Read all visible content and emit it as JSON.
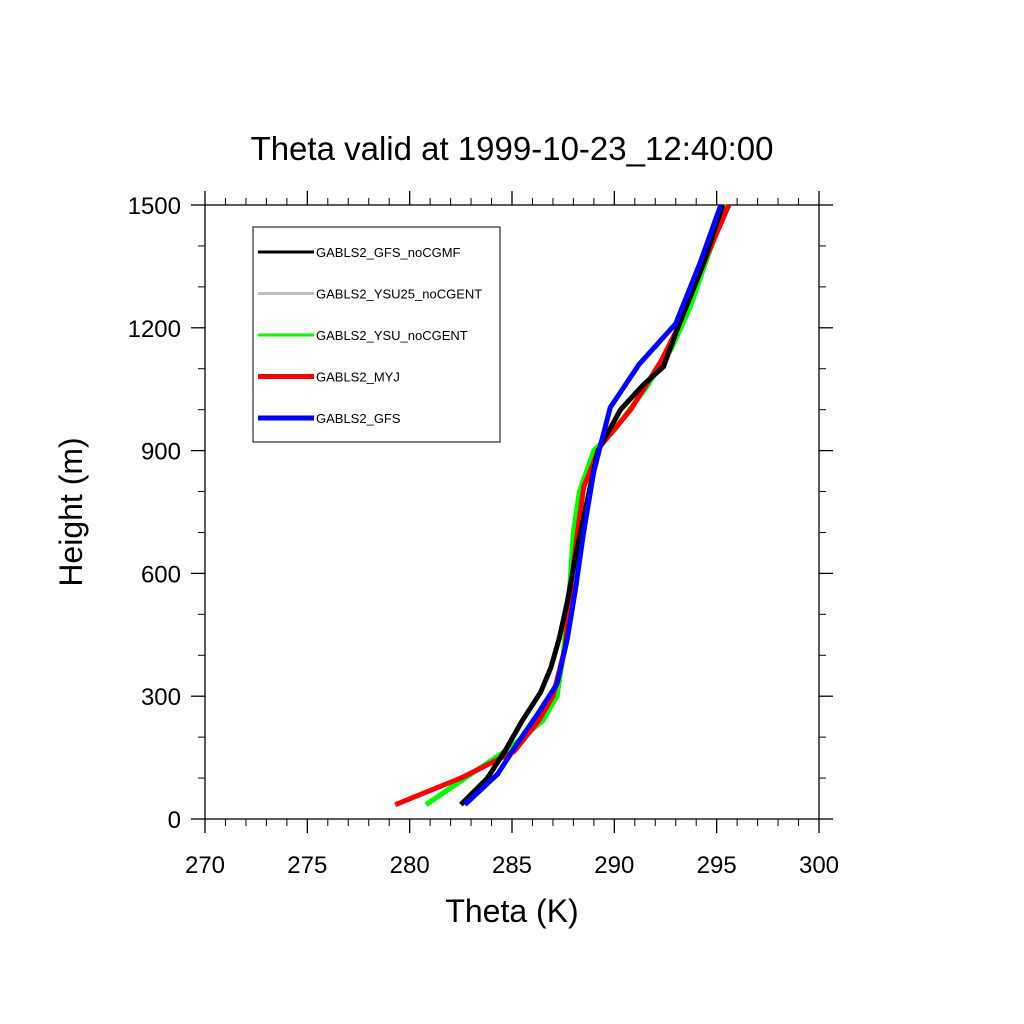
{
  "chart_data": {
    "type": "line",
    "title": "Theta valid at 1999-10-23_12:40:00",
    "xlabel": "Theta (K)",
    "ylabel": "Height (m)",
    "xlim": [
      270,
      300
    ],
    "ylim": [
      0,
      1500
    ],
    "xticks": [
      270,
      275,
      280,
      285,
      290,
      295,
      300
    ],
    "yticks": [
      0,
      300,
      600,
      900,
      1200,
      1500
    ],
    "grid": false,
    "legend_position": "top-left",
    "series": [
      {
        "name": "GABLS2_YSU25_noCGENT",
        "color": "#bebebe",
        "points": [
          [
            280.8,
            35
          ],
          [
            283.0,
            110
          ],
          [
            284.8,
            170
          ],
          [
            286.5,
            240
          ],
          [
            287.2,
            300
          ],
          [
            287.5,
            400
          ],
          [
            287.8,
            550
          ],
          [
            288.0,
            700
          ],
          [
            288.3,
            800
          ],
          [
            289.0,
            900
          ],
          [
            290.0,
            950
          ],
          [
            291.5,
            1050
          ],
          [
            292.8,
            1150
          ],
          [
            293.7,
            1250
          ],
          [
            294.6,
            1380
          ],
          [
            295.5,
            1500
          ]
        ]
      },
      {
        "name": "GABLS2_YSU_noCGENT",
        "color": "#00ff00",
        "points": [
          [
            280.8,
            35
          ],
          [
            283.0,
            110
          ],
          [
            284.8,
            170
          ],
          [
            286.5,
            240
          ],
          [
            287.2,
            300
          ],
          [
            287.5,
            400
          ],
          [
            287.8,
            550
          ],
          [
            288.0,
            700
          ],
          [
            288.3,
            800
          ],
          [
            289.0,
            900
          ],
          [
            290.0,
            950
          ],
          [
            291.5,
            1050
          ],
          [
            292.8,
            1150
          ],
          [
            293.7,
            1250
          ],
          [
            294.6,
            1380
          ],
          [
            295.5,
            1500
          ]
        ]
      },
      {
        "name": "GABLS2_MYJ",
        "color": "#ff0000",
        "points": [
          [
            279.3,
            35
          ],
          [
            282.5,
            100
          ],
          [
            285.1,
            165
          ],
          [
            286.3,
            240
          ],
          [
            287.0,
            300
          ],
          [
            287.6,
            420
          ],
          [
            287.9,
            580
          ],
          [
            288.2,
            700
          ],
          [
            288.5,
            810
          ],
          [
            289.3,
            910
          ],
          [
            290.8,
            1000
          ],
          [
            292.3,
            1120
          ],
          [
            293.1,
            1200
          ],
          [
            294.3,
            1350
          ],
          [
            295.6,
            1500
          ]
        ]
      },
      {
        "name": "GABLS2_GFS_noCGMF",
        "color": "#000000",
        "points": [
          [
            282.5,
            35
          ],
          [
            283.8,
            100
          ],
          [
            284.7,
            170
          ],
          [
            285.5,
            240
          ],
          [
            286.4,
            310
          ],
          [
            286.9,
            370
          ],
          [
            287.3,
            440
          ],
          [
            287.7,
            530
          ],
          [
            288.1,
            640
          ],
          [
            288.6,
            760
          ],
          [
            289.2,
            900
          ],
          [
            290.3,
            1000
          ],
          [
            291.4,
            1060
          ],
          [
            292.4,
            1105
          ],
          [
            293.1,
            1200
          ],
          [
            294.3,
            1350
          ],
          [
            295.3,
            1500
          ]
        ]
      },
      {
        "name": "GABLS2_GFS",
        "color": "#0000ff",
        "points": [
          [
            282.7,
            35
          ],
          [
            284.3,
            110
          ],
          [
            285.2,
            180
          ],
          [
            286.3,
            260
          ],
          [
            287.2,
            330
          ],
          [
            287.7,
            440
          ],
          [
            288.1,
            560
          ],
          [
            288.5,
            700
          ],
          [
            289.0,
            850
          ],
          [
            289.8,
            1005
          ],
          [
            291.2,
            1110
          ],
          [
            293.0,
            1210
          ],
          [
            294.2,
            1360
          ],
          [
            295.2,
            1500
          ]
        ]
      }
    ],
    "legend_order": [
      "GABLS2_GFS_noCGMF",
      "GABLS2_YSU25_noCGENT",
      "GABLS2_YSU_noCGENT",
      "GABLS2_MYJ",
      "GABLS2_GFS"
    ]
  }
}
